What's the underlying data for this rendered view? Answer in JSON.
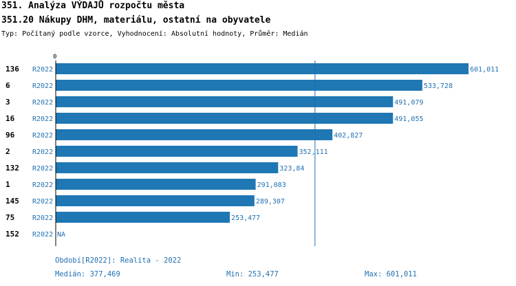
{
  "header": {
    "title": "351. Analýza VÝDAJŮ rozpočtu města",
    "subtitle": "351.20 Nákupy DHM, materiálu, ostatní na obyvatele",
    "info": "Typ: Počítaný podle vzorce, Vyhodnocení: Absolutní hodnoty, Průměr: Medián"
  },
  "footer": {
    "period": "Období[R2022]: Realita - 2022",
    "median": "Medián: 377,469",
    "min": "Min: 253,477",
    "max": "Max: 601,011"
  },
  "chart_data": {
    "type": "bar",
    "orientation": "horizontal",
    "axis_zero_label": "0",
    "xlim": [
      0,
      601.011
    ],
    "median": 377.469,
    "series_label": "R2022",
    "bar_color": "#1f77b4",
    "median_line_color": "#1f6fb2",
    "categories": [
      "136",
      "6",
      "3",
      "16",
      "96",
      "2",
      "132",
      "1",
      "145",
      "75",
      "152"
    ],
    "values": [
      601.011,
      533.728,
      491.079,
      491.055,
      402.827,
      352.111,
      323.84,
      291.083,
      289.307,
      253.477,
      null
    ],
    "value_labels": [
      "601,011",
      "533,728",
      "491,079",
      "491,055",
      "402,827",
      "352,111",
      "323,84",
      "291,083",
      "289,307",
      "253,477",
      "NA"
    ]
  }
}
